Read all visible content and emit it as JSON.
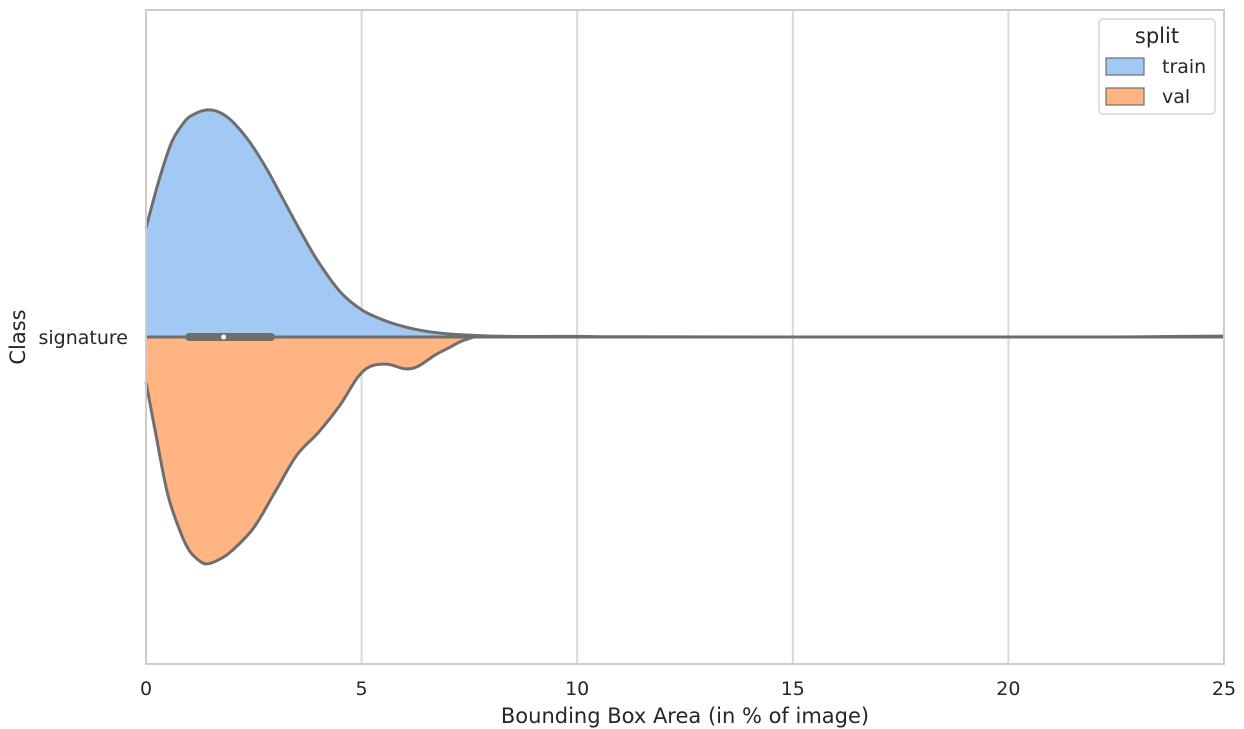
{
  "chart_data": {
    "type": "violin",
    "orientation": "horizontal",
    "split": true,
    "xlabel": "Bounding Box Area (in % of image)",
    "ylabel": "Class",
    "xlim": [
      0,
      25
    ],
    "x_ticks": [
      0,
      5,
      10,
      15,
      20,
      25
    ],
    "x_tick_labels": [
      "0",
      "5",
      "10",
      "15",
      "20",
      "25"
    ],
    "categories": [
      "signature"
    ],
    "grid": "vertical",
    "legend": {
      "title": "split",
      "position": "top-right",
      "entries": [
        "train",
        "val"
      ]
    },
    "colors": {
      "train": "#a1c9f4",
      "val": "#ffb482",
      "outline": "#6e6e6e",
      "grid": "#d9d9d9",
      "spine": "#cccccc"
    },
    "box": {
      "q1": 1.0,
      "median": 1.8,
      "q3": 2.9
    },
    "series": [
      {
        "name": "train",
        "side": "upper",
        "density_relative": [
          [
            0.0,
            0.48
          ],
          [
            0.3,
            0.69
          ],
          [
            0.6,
            0.86
          ],
          [
            0.9,
            0.95
          ],
          [
            1.1,
            0.98
          ],
          [
            1.4,
            1.0
          ],
          [
            1.7,
            0.99
          ],
          [
            2.0,
            0.95
          ],
          [
            2.4,
            0.86
          ],
          [
            2.8,
            0.74
          ],
          [
            3.2,
            0.6
          ],
          [
            3.6,
            0.46
          ],
          [
            4.0,
            0.33
          ],
          [
            4.5,
            0.2
          ],
          [
            5.0,
            0.12
          ],
          [
            5.5,
            0.075
          ],
          [
            6.0,
            0.045
          ],
          [
            6.5,
            0.025
          ],
          [
            7.0,
            0.014
          ],
          [
            7.5,
            0.008
          ],
          [
            8.0,
            0.004
          ],
          [
            9.0,
            0.002
          ],
          [
            10.0,
            0.003
          ],
          [
            11.0,
            0.001
          ],
          [
            15.0,
            0.0
          ],
          [
            22.0,
            0.0
          ],
          [
            24.0,
            0.003
          ],
          [
            25.0,
            0.004
          ]
        ]
      },
      {
        "name": "val",
        "side": "lower",
        "density_relative": [
          [
            0.0,
            0.2
          ],
          [
            0.2,
            0.4
          ],
          [
            0.5,
            0.69
          ],
          [
            0.8,
            0.86
          ],
          [
            1.0,
            0.94
          ],
          [
            1.2,
            0.98
          ],
          [
            1.4,
            1.0
          ],
          [
            1.7,
            0.98
          ],
          [
            2.0,
            0.94
          ],
          [
            2.5,
            0.84
          ],
          [
            3.0,
            0.68
          ],
          [
            3.5,
            0.52
          ],
          [
            4.0,
            0.42
          ],
          [
            4.5,
            0.3
          ],
          [
            4.9,
            0.18
          ],
          [
            5.2,
            0.13
          ],
          [
            5.6,
            0.12
          ],
          [
            6.0,
            0.14
          ],
          [
            6.3,
            0.13
          ],
          [
            6.7,
            0.08
          ],
          [
            7.0,
            0.05
          ],
          [
            7.3,
            0.02
          ],
          [
            7.6,
            0.0
          ]
        ]
      }
    ]
  }
}
